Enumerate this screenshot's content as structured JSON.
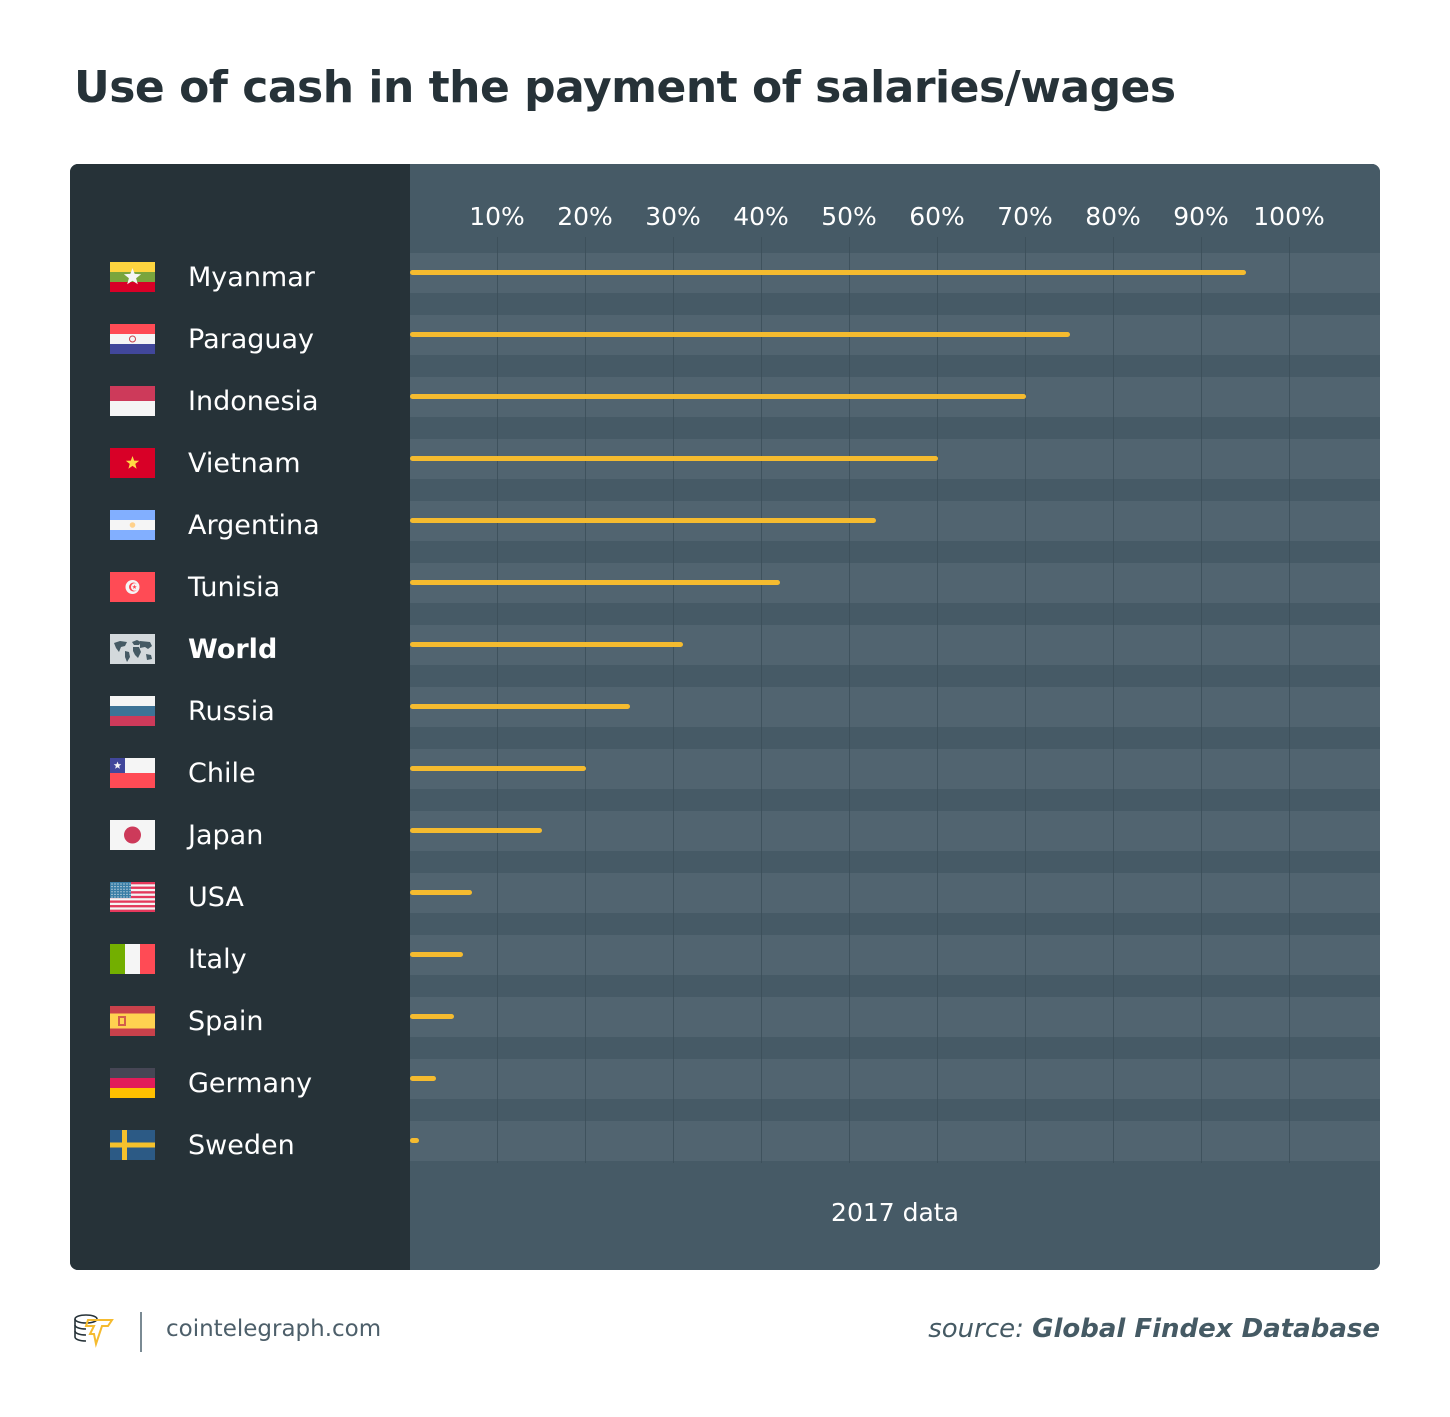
{
  "title": "Use of cash in the payment of salaries/wages",
  "axis": {
    "ticks": [
      "10%",
      "20%",
      "30%",
      "40%",
      "50%",
      "60%",
      "70%",
      "80%",
      "90%",
      "100%"
    ]
  },
  "footnote": "2017 data",
  "footer": {
    "site": "cointelegraph.com",
    "source_label": "source:",
    "source_name": "Global Findex Database"
  },
  "colors": {
    "bar": "#f5bb2f",
    "sidebar": "#263238",
    "plot_bg": "#465a66",
    "band": "#516470",
    "title": "#263238"
  },
  "rows": [
    {
      "label": "Myanmar",
      "flag": "myanmar-flag",
      "value": 95
    },
    {
      "label": "Paraguay",
      "flag": "paraguay-flag",
      "value": 75
    },
    {
      "label": "Indonesia",
      "flag": "indonesia-flag",
      "value": 70
    },
    {
      "label": "Vietnam",
      "flag": "vietnam-flag",
      "value": 60
    },
    {
      "label": "Argentina",
      "flag": "argentina-flag",
      "value": 53
    },
    {
      "label": "Tunisia",
      "flag": "tunisia-flag",
      "value": 42
    },
    {
      "label": "World",
      "flag": "world-map-icon",
      "value": 31,
      "bold": true
    },
    {
      "label": "Russia",
      "flag": "russia-flag",
      "value": 25
    },
    {
      "label": "Chile",
      "flag": "chile-flag",
      "value": 20
    },
    {
      "label": "Japan",
      "flag": "japan-flag",
      "value": 15
    },
    {
      "label": "USA",
      "flag": "usa-flag",
      "value": 7
    },
    {
      "label": "Italy",
      "flag": "italy-flag",
      "value": 6
    },
    {
      "label": "Spain",
      "flag": "spain-flag",
      "value": 5
    },
    {
      "label": "Germany",
      "flag": "germany-flag",
      "value": 3
    },
    {
      "label": "Sweden",
      "flag": "sweden-flag",
      "value": 1
    }
  ],
  "chart_data": {
    "type": "bar",
    "orientation": "horizontal",
    "title": "Use of cash in the payment of salaries/wages",
    "categories": [
      "Myanmar",
      "Paraguay",
      "Indonesia",
      "Vietnam",
      "Argentina",
      "Tunisia",
      "World",
      "Russia",
      "Chile",
      "Japan",
      "USA",
      "Italy",
      "Spain",
      "Germany",
      "Sweden"
    ],
    "values": [
      95,
      75,
      70,
      60,
      53,
      42,
      31,
      25,
      20,
      15,
      7,
      6,
      5,
      3,
      1
    ],
    "xlabel": "2017 data",
    "ylabel": "",
    "xlim": [
      0,
      100
    ],
    "x_tick_labels": [
      "10%",
      "20%",
      "30%",
      "40%",
      "50%",
      "60%",
      "70%",
      "80%",
      "90%",
      "100%"
    ],
    "grid": true,
    "legend": null,
    "annotations": [
      "source: Global Findex Database",
      "cointelegraph.com"
    ]
  }
}
